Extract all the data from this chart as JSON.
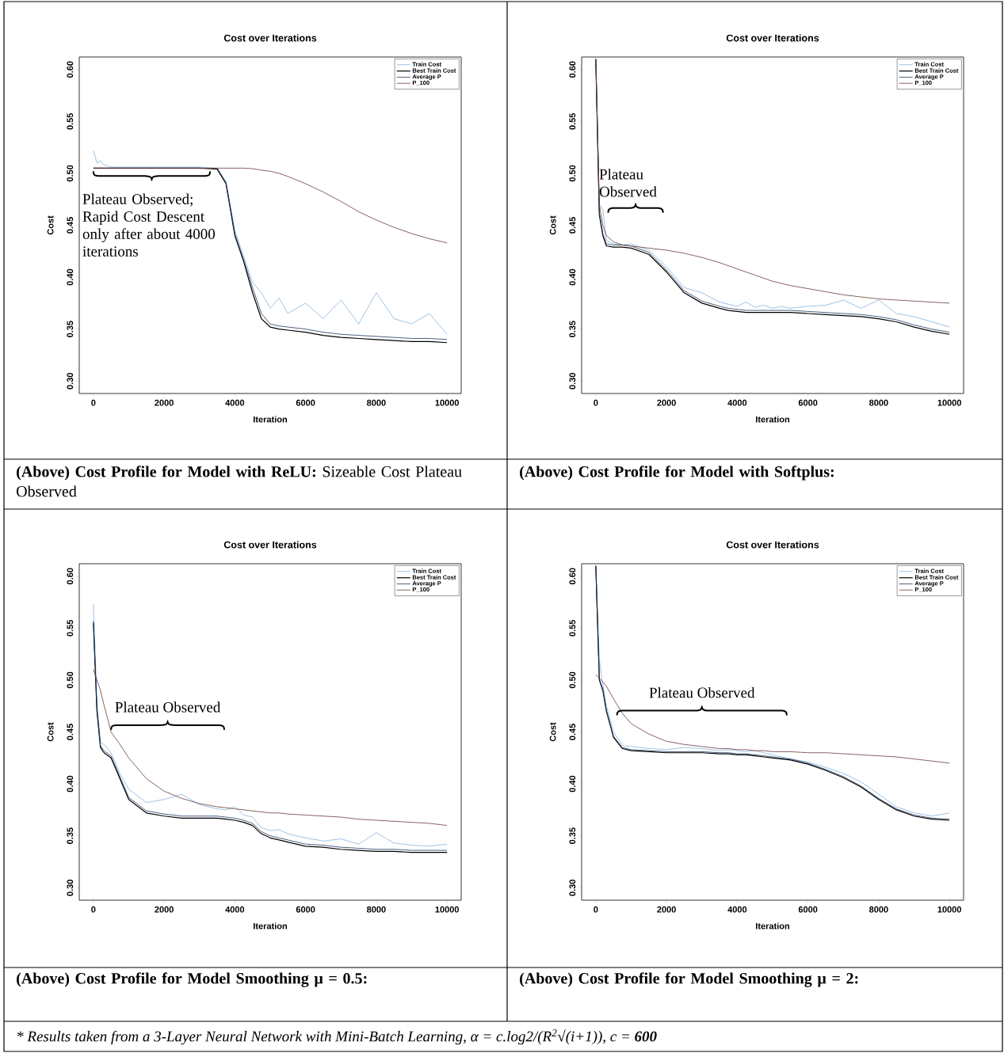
{
  "chart_data": [
    {
      "type": "line",
      "title": "Cost over Iterations",
      "xlabel": "Iteration",
      "ylabel": "Cost",
      "xlim": [
        -400,
        10400
      ],
      "ylim": [
        0.288,
        0.612
      ],
      "xticks": [
        0,
        2000,
        4000,
        6000,
        8000,
        10000
      ],
      "yticks": [
        {
          "value": 0.3,
          "label": "0.30"
        },
        {
          "value": 0.35,
          "label": "0.35"
        },
        {
          "value": 0.4,
          "label": "0.40"
        },
        {
          "value": 0.45,
          "label": "0.45"
        },
        {
          "value": 0.5,
          "label": "0.50"
        },
        {
          "value": 0.55,
          "label": "0.55"
        },
        {
          "value": 0.6,
          "label": "0.60"
        }
      ],
      "legend": "top right",
      "x": [
        0,
        100,
        200,
        300,
        500,
        750,
        1000,
        1500,
        2000,
        2500,
        3000,
        3500,
        3750,
        4000,
        4250,
        4500,
        4750,
        5000,
        5250,
        5500,
        6000,
        6500,
        7000,
        7500,
        8000,
        8500,
        9000,
        9500,
        10000
      ],
      "series": [
        {
          "name": "Train Cost",
          "color": "#5b9bd5",
          "values": [
            0.522,
            0.51,
            0.512,
            0.508,
            0.506,
            0.506,
            0.506,
            0.506,
            0.506,
            0.506,
            0.506,
            0.505,
            0.492,
            0.445,
            0.42,
            0.395,
            0.385,
            0.37,
            0.38,
            0.365,
            0.375,
            0.36,
            0.378,
            0.355,
            0.385,
            0.36,
            0.355,
            0.365,
            0.345
          ]
        },
        {
          "name": "Best Train Cost",
          "color": "#000000",
          "values": [
            0.505,
            0.505,
            0.505,
            0.505,
            0.505,
            0.505,
            0.505,
            0.505,
            0.505,
            0.505,
            0.505,
            0.504,
            0.49,
            0.44,
            0.415,
            0.385,
            0.36,
            0.352,
            0.35,
            0.349,
            0.347,
            0.344,
            0.342,
            0.341,
            0.34,
            0.339,
            0.338,
            0.338,
            0.337
          ]
        },
        {
          "name": "Average P",
          "color": "#1f3a5f",
          "values": [
            null,
            null,
            null,
            null,
            null,
            null,
            null,
            null,
            null,
            null,
            null,
            0.505,
            0.491,
            0.442,
            0.417,
            0.39,
            0.365,
            0.355,
            0.353,
            0.352,
            0.35,
            0.347,
            0.345,
            0.344,
            0.343,
            0.342,
            0.341,
            0.341,
            0.34
          ]
        },
        {
          "name": "P_100",
          "color": "#6b3a3a",
          "values": [
            0.505,
            0.505,
            0.505,
            0.505,
            0.505,
            0.505,
            0.505,
            0.505,
            0.505,
            0.505,
            0.505,
            0.505,
            0.505,
            0.505,
            0.505,
            0.5045,
            0.503,
            0.502,
            0.5,
            0.497,
            0.49,
            0.482,
            0.473,
            0.463,
            0.455,
            0.448,
            0.442,
            0.437,
            0.433
          ]
        }
      ],
      "annotations": [
        "**(Above) Cost Profile for Model with ReLU:** Sizeable Cost Plateau Observed",
        {
          "text": "Plateau Observed; Rapid Cost Descent only after about 4000 iterations",
          "x": 1650,
          "y": 0.505
        }
      ]
    },
    {
      "type": "line",
      "title": "Cost over Iterations",
      "xlabel": "Iteration",
      "ylabel": "Cost",
      "xlim": [
        -400,
        10400
      ],
      "ylim": [
        0.288,
        0.612
      ],
      "xticks": [
        0,
        2000,
        4000,
        6000,
        8000,
        10000
      ],
      "yticks": [
        {
          "value": 0.3,
          "label": "0.30"
        },
        {
          "value": 0.35,
          "label": "0.35"
        },
        {
          "value": 0.4,
          "label": "0.40"
        },
        {
          "value": 0.45,
          "label": "0.45"
        },
        {
          "value": 0.5,
          "label": "0.50"
        },
        {
          "value": 0.55,
          "label": "0.55"
        },
        {
          "value": 0.6,
          "label": "0.60"
        }
      ],
      "legend": "top right",
      "x": [
        0,
        100,
        200,
        300,
        500,
        750,
        1000,
        1500,
        2000,
        2500,
        3000,
        3500,
        3750,
        4000,
        4250,
        4500,
        4750,
        5000,
        5250,
        5500,
        6000,
        6500,
        7000,
        7500,
        8000,
        8500,
        9000,
        9500,
        10000
      ],
      "series": [
        {
          "name": "Train Cost",
          "color": "#5b9bd5",
          "values": [
            0.61,
            0.47,
            0.465,
            0.435,
            0.432,
            0.431,
            0.432,
            0.426,
            0.41,
            0.39,
            0.385,
            0.376,
            0.374,
            0.372,
            0.376,
            0.371,
            0.373,
            0.37,
            0.372,
            0.37,
            0.372,
            0.373,
            0.378,
            0.37,
            0.378,
            0.365,
            0.362,
            0.357,
            0.352
          ]
        },
        {
          "name": "Best Train Cost",
          "color": "#000000",
          "values": [
            0.61,
            0.46,
            0.44,
            0.43,
            0.429,
            0.429,
            0.428,
            0.422,
            0.405,
            0.385,
            0.375,
            0.37,
            0.368,
            0.367,
            0.366,
            0.366,
            0.366,
            0.366,
            0.366,
            0.366,
            0.365,
            0.364,
            0.363,
            0.362,
            0.36,
            0.357,
            0.352,
            0.348,
            0.345
          ]
        },
        {
          "name": "Average P",
          "color": "#1f3a5f",
          "values": [
            0.61,
            0.462,
            0.442,
            0.432,
            0.431,
            0.431,
            0.43,
            0.424,
            0.407,
            0.387,
            0.377,
            0.372,
            0.37,
            0.369,
            0.368,
            0.368,
            0.368,
            0.368,
            0.368,
            0.368,
            0.367,
            0.366,
            0.365,
            0.364,
            0.362,
            0.359,
            0.354,
            0.35,
            0.347
          ]
        },
        {
          "name": "P_100",
          "color": "#6b3a3a",
          "values": [
            0.61,
            0.47,
            0.45,
            0.44,
            0.434,
            0.431,
            0.43,
            0.428,
            0.426,
            0.423,
            0.419,
            0.414,
            0.411,
            0.408,
            0.405,
            0.402,
            0.399,
            0.396,
            0.394,
            0.392,
            0.389,
            0.386,
            0.383,
            0.381,
            0.379,
            0.378,
            0.377,
            0.376,
            0.375
          ]
        }
      ],
      "annotations": [
        "**(Above) Cost Profile for Model with Softplus:**",
        "Plateau Observed"
      ]
    },
    {
      "type": "line",
      "title": "Cost over Iterations",
      "xlabel": "Iteration",
      "ylabel": "Cost",
      "xlim": [
        -400,
        10400
      ],
      "ylim": [
        0.288,
        0.612
      ],
      "xticks": [
        0,
        2000,
        4000,
        6000,
        8000,
        10000
      ],
      "yticks": [
        {
          "value": 0.3,
          "label": "0.30"
        },
        {
          "value": 0.35,
          "label": "0.35"
        },
        {
          "value": 0.4,
          "label": "0.40"
        },
        {
          "value": 0.45,
          "label": "0.45"
        },
        {
          "value": 0.5,
          "label": "0.50"
        },
        {
          "value": 0.55,
          "label": "0.55"
        },
        {
          "value": 0.6,
          "label": "0.60"
        }
      ],
      "legend": "top right",
      "x": [
        0,
        100,
        200,
        300,
        500,
        750,
        1000,
        1500,
        2000,
        2500,
        3000,
        3500,
        3750,
        4000,
        4250,
        4500,
        4750,
        5000,
        5250,
        5500,
        6000,
        6500,
        7000,
        7500,
        8000,
        8500,
        9000,
        9500,
        10000
      ],
      "series": [
        {
          "name": "Train Cost",
          "color": "#5b9bd5",
          "values": [
            0.573,
            0.48,
            0.44,
            0.438,
            0.43,
            0.41,
            0.395,
            0.382,
            0.385,
            0.39,
            0.38,
            0.376,
            0.375,
            0.378,
            0.37,
            0.368,
            0.358,
            0.355,
            0.356,
            0.352,
            0.348,
            0.345,
            0.347,
            0.342,
            0.353,
            0.343,
            0.341,
            0.34,
            0.342
          ]
        },
        {
          "name": "Best Train Cost",
          "color": "#000000",
          "values": [
            0.555,
            0.47,
            0.435,
            0.43,
            0.425,
            0.405,
            0.385,
            0.372,
            0.369,
            0.367,
            0.367,
            0.367,
            0.366,
            0.365,
            0.363,
            0.36,
            0.352,
            0.348,
            0.346,
            0.344,
            0.34,
            0.339,
            0.337,
            0.336,
            0.335,
            0.335,
            0.334,
            0.334,
            0.334
          ]
        },
        {
          "name": "Average P",
          "color": "#1f3a5f",
          "values": [
            0.557,
            0.472,
            0.437,
            0.432,
            0.427,
            0.407,
            0.387,
            0.374,
            0.371,
            0.369,
            0.369,
            0.369,
            0.368,
            0.367,
            0.365,
            0.362,
            0.354,
            0.35,
            0.348,
            0.346,
            0.342,
            0.341,
            0.339,
            0.338,
            0.337,
            0.337,
            0.336,
            0.336,
            0.336
          ]
        },
        {
          "name": "P_100",
          "color": "#6b3a3a",
          "values": [
            0.51,
            0.5,
            0.49,
            0.476,
            0.45,
            0.438,
            0.425,
            0.405,
            0.393,
            0.386,
            0.381,
            0.378,
            0.377,
            0.376,
            0.375,
            0.374,
            0.373,
            0.372,
            0.372,
            0.371,
            0.37,
            0.369,
            0.368,
            0.366,
            0.365,
            0.364,
            0.363,
            0.362,
            0.36
          ]
        }
      ],
      "annotations": [
        "**(Above) Cost Profile for Model Smoothing μ = 0.5:**",
        "Plateau Observed"
      ]
    },
    {
      "type": "line",
      "title": "Cost over Iterations",
      "xlabel": "Iteration",
      "ylabel": "Cost",
      "xlim": [
        -400,
        10400
      ],
      "ylim": [
        0.288,
        0.612
      ],
      "xticks": [
        0,
        2000,
        4000,
        6000,
        8000,
        10000
      ],
      "yticks": [
        {
          "value": 0.3,
          "label": "0.30"
        },
        {
          "value": 0.35,
          "label": "0.35"
        },
        {
          "value": 0.4,
          "label": "0.40"
        },
        {
          "value": 0.45,
          "label": "0.45"
        },
        {
          "value": 0.5,
          "label": "0.50"
        },
        {
          "value": 0.55,
          "label": "0.55"
        },
        {
          "value": 0.6,
          "label": "0.60"
        }
      ],
      "legend": "top right",
      "x": [
        0,
        100,
        200,
        300,
        500,
        750,
        1000,
        1500,
        2000,
        2500,
        3000,
        3500,
        3750,
        4000,
        4250,
        4500,
        4750,
        5000,
        5250,
        5500,
        6000,
        6500,
        7000,
        7500,
        8000,
        8500,
        9000,
        9500,
        10000
      ],
      "series": [
        {
          "name": "Train Cost",
          "color": "#5b9bd5",
          "values": [
            0.61,
            0.52,
            0.495,
            0.475,
            0.45,
            0.437,
            0.436,
            0.434,
            0.433,
            0.435,
            0.434,
            0.432,
            0.433,
            0.432,
            0.431,
            0.432,
            0.43,
            0.428,
            0.426,
            0.424,
            0.421,
            0.416,
            0.41,
            0.402,
            0.39,
            0.378,
            0.372,
            0.369,
            0.372
          ]
        },
        {
          "name": "Best Train Cost",
          "color": "#000000",
          "values": [
            0.61,
            0.5,
            0.49,
            0.47,
            0.445,
            0.434,
            0.432,
            0.431,
            0.43,
            0.43,
            0.43,
            0.429,
            0.429,
            0.428,
            0.428,
            0.427,
            0.426,
            0.425,
            0.424,
            0.423,
            0.419,
            0.413,
            0.406,
            0.397,
            0.385,
            0.375,
            0.369,
            0.366,
            0.365
          ]
        },
        {
          "name": "Average P",
          "color": "#1f3a5f",
          "values": [
            0.61,
            0.501,
            0.491,
            0.471,
            0.446,
            0.435,
            0.433,
            0.432,
            0.431,
            0.431,
            0.431,
            0.43,
            0.43,
            0.429,
            0.429,
            0.428,
            0.427,
            0.426,
            0.425,
            0.424,
            0.42,
            0.414,
            0.407,
            0.398,
            0.386,
            0.376,
            0.37,
            0.367,
            0.366
          ]
        },
        {
          "name": "P_100",
          "color": "#6b3a3a",
          "values": [
            0.505,
            0.502,
            0.498,
            0.494,
            0.482,
            0.468,
            0.458,
            0.448,
            0.441,
            0.438,
            0.436,
            0.434,
            0.434,
            0.433,
            0.433,
            0.432,
            0.432,
            0.431,
            0.431,
            0.431,
            0.43,
            0.43,
            0.429,
            0.428,
            0.427,
            0.426,
            0.424,
            0.422,
            0.42
          ]
        }
      ],
      "annotations": [
        "**(Above) Cost Profile for Model Smoothing μ = 2:**",
        "Plateau Observed",
        "* Results taken from a 3-Layer Neural Network with Mini-Batch Learning, α = c.log2/(R$^{2}$√(i+1)), c = **600**"
      ]
    }
  ]
}
